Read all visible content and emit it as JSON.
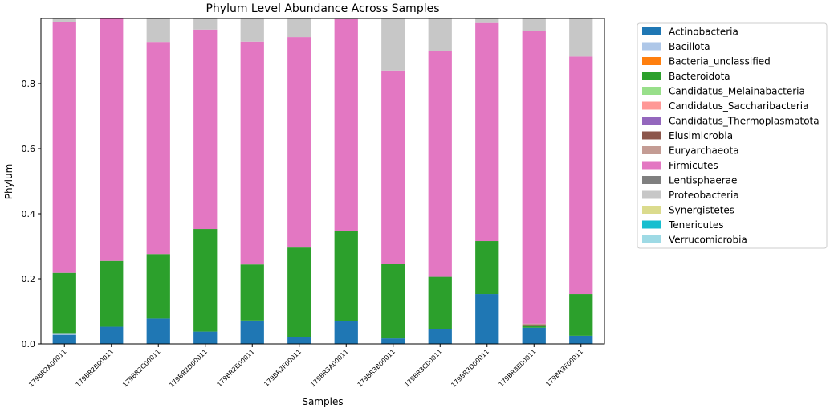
{
  "chart_data": {
    "type": "bar",
    "stacked": true,
    "title": "Phylum Level Abundance Across Samples",
    "xlabel": "Samples",
    "ylabel": "Phylum",
    "ylim": [
      0,
      1.0
    ],
    "yticks": [
      0.0,
      0.2,
      0.4,
      0.6,
      0.8
    ],
    "ytick_labels": [
      "0.0",
      "0.2",
      "0.4",
      "0.6",
      "0.8"
    ],
    "grid": false,
    "legend_position": "outside-right",
    "categories": [
      "179BR2A00011",
      "179BR2B00011",
      "179BR2C00011",
      "179BR2D00011",
      "179BR2E00011",
      "179BR2F00011",
      "179BR3A00011",
      "179BR3B00011",
      "179BR3C00011",
      "179BR3D00011",
      "179BR3E00011",
      "179BR3F00011"
    ],
    "series": [
      {
        "name": "Actinobacteria",
        "color": "#1f77b4",
        "values": [
          0.028,
          0.053,
          0.078,
          0.038,
          0.072,
          0.022,
          0.07,
          0.017,
          0.045,
          0.153,
          0.05,
          0.025
        ]
      },
      {
        "name": "Bacillota",
        "color": "#aec7e8",
        "values": [
          0.003,
          0,
          0,
          0,
          0,
          0,
          0,
          0,
          0,
          0,
          0,
          0
        ]
      },
      {
        "name": "Bacteria_unclassified",
        "color": "#ff7f0e",
        "values": [
          0,
          0,
          0,
          0,
          0,
          0,
          0,
          0,
          0,
          0,
          0,
          0
        ]
      },
      {
        "name": "Bacteroidota",
        "color": "#2ca02c",
        "values": [
          0.187,
          0.202,
          0.198,
          0.315,
          0.172,
          0.274,
          0.278,
          0.229,
          0.161,
          0.163,
          0.005,
          0.128
        ]
      },
      {
        "name": "Candidatus_Melainabacteria",
        "color": "#98df8a",
        "values": [
          0,
          0,
          0,
          0,
          0,
          0,
          0,
          0,
          0,
          0,
          0,
          0
        ]
      },
      {
        "name": "Candidatus_Saccharibacteria",
        "color": "#ff9896",
        "values": [
          0,
          0,
          0,
          0,
          0,
          0,
          0,
          0,
          0,
          0,
          0,
          0
        ]
      },
      {
        "name": "Candidatus_Thermoplasmatota",
        "color": "#9467bd",
        "values": [
          0,
          0,
          0,
          0,
          0,
          0,
          0,
          0,
          0,
          0,
          0,
          0
        ]
      },
      {
        "name": "Elusimicrobia",
        "color": "#8c564b",
        "values": [
          0,
          0,
          0,
          0,
          0,
          0,
          0,
          0,
          0,
          0,
          0.005,
          0
        ]
      },
      {
        "name": "Euryarchaeota",
        "color": "#c49c94",
        "values": [
          0,
          0,
          0,
          0,
          0,
          0,
          0,
          0,
          0,
          0,
          0.002,
          0
        ]
      },
      {
        "name": "Firmicutes",
        "color": "#e377c2",
        "values": [
          0.771,
          0.744,
          0.652,
          0.613,
          0.685,
          0.647,
          0.65,
          0.594,
          0.693,
          0.67,
          0.9,
          0.73
        ]
      },
      {
        "name": "Lentisphaerae",
        "color": "#7f7f7f",
        "values": [
          0,
          0,
          0,
          0,
          0,
          0,
          0,
          0,
          0,
          0,
          0,
          0
        ]
      },
      {
        "name": "Proteobacteria",
        "color": "#c7c7c7",
        "values": [
          0.011,
          0.001,
          0.072,
          0.034,
          0.071,
          0.057,
          0.002,
          0.16,
          0.101,
          0.014,
          0.038,
          0.117
        ]
      },
      {
        "name": "Synergistetes",
        "color": "#dbdb8d",
        "values": [
          0,
          0,
          0,
          0,
          0,
          0,
          0,
          0,
          0,
          0,
          0,
          0
        ]
      },
      {
        "name": "Tenericutes",
        "color": "#17becf",
        "values": [
          0,
          0,
          0,
          0,
          0,
          0,
          0,
          0,
          0,
          0,
          0,
          0
        ]
      },
      {
        "name": "Verrucomicrobia",
        "color": "#9edae5",
        "values": [
          0,
          0,
          0,
          0,
          0,
          0,
          0,
          0,
          0,
          0,
          0,
          0
        ]
      }
    ]
  }
}
